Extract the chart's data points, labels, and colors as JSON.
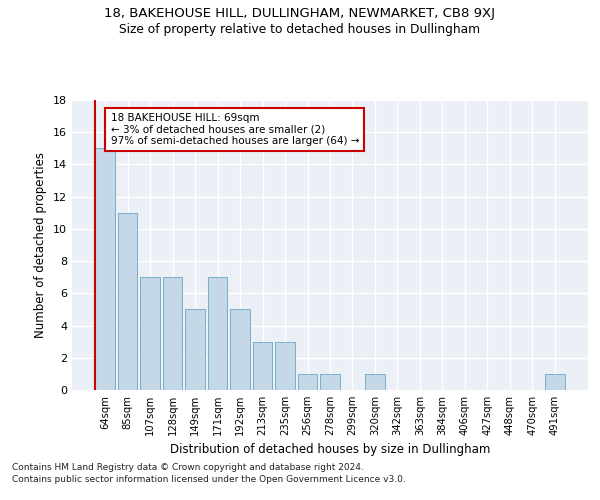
{
  "title1": "18, BAKEHOUSE HILL, DULLINGHAM, NEWMARKET, CB8 9XJ",
  "title2": "Size of property relative to detached houses in Dullingham",
  "xlabel": "Distribution of detached houses by size in Dullingham",
  "ylabel": "Number of detached properties",
  "categories": [
    "64sqm",
    "85sqm",
    "107sqm",
    "128sqm",
    "149sqm",
    "171sqm",
    "192sqm",
    "213sqm",
    "235sqm",
    "256sqm",
    "278sqm",
    "299sqm",
    "320sqm",
    "342sqm",
    "363sqm",
    "384sqm",
    "406sqm",
    "427sqm",
    "448sqm",
    "470sqm",
    "491sqm"
  ],
  "values": [
    15,
    11,
    7,
    7,
    5,
    7,
    5,
    3,
    3,
    1,
    1,
    0,
    1,
    0,
    0,
    0,
    0,
    0,
    0,
    0,
    1
  ],
  "bar_color": "#c5d8e8",
  "bar_edge_color": "#7aaec8",
  "highlight_index": 0,
  "highlight_color": "#cc0000",
  "annotation_line1": "18 BAKEHOUSE HILL: 69sqm",
  "annotation_line2": "← 3% of detached houses are smaller (2)",
  "annotation_line3": "97% of semi-detached houses are larger (64) →",
  "annotation_box_color": "#ffffff",
  "annotation_box_edge": "#cc0000",
  "ylim": [
    0,
    18
  ],
  "yticks": [
    0,
    2,
    4,
    6,
    8,
    10,
    12,
    14,
    16,
    18
  ],
  "background_color": "#eaf0f6",
  "grid_color": "#ffffff",
  "footer1": "Contains HM Land Registry data © Crown copyright and database right 2024.",
  "footer2": "Contains public sector information licensed under the Open Government Licence v3.0."
}
